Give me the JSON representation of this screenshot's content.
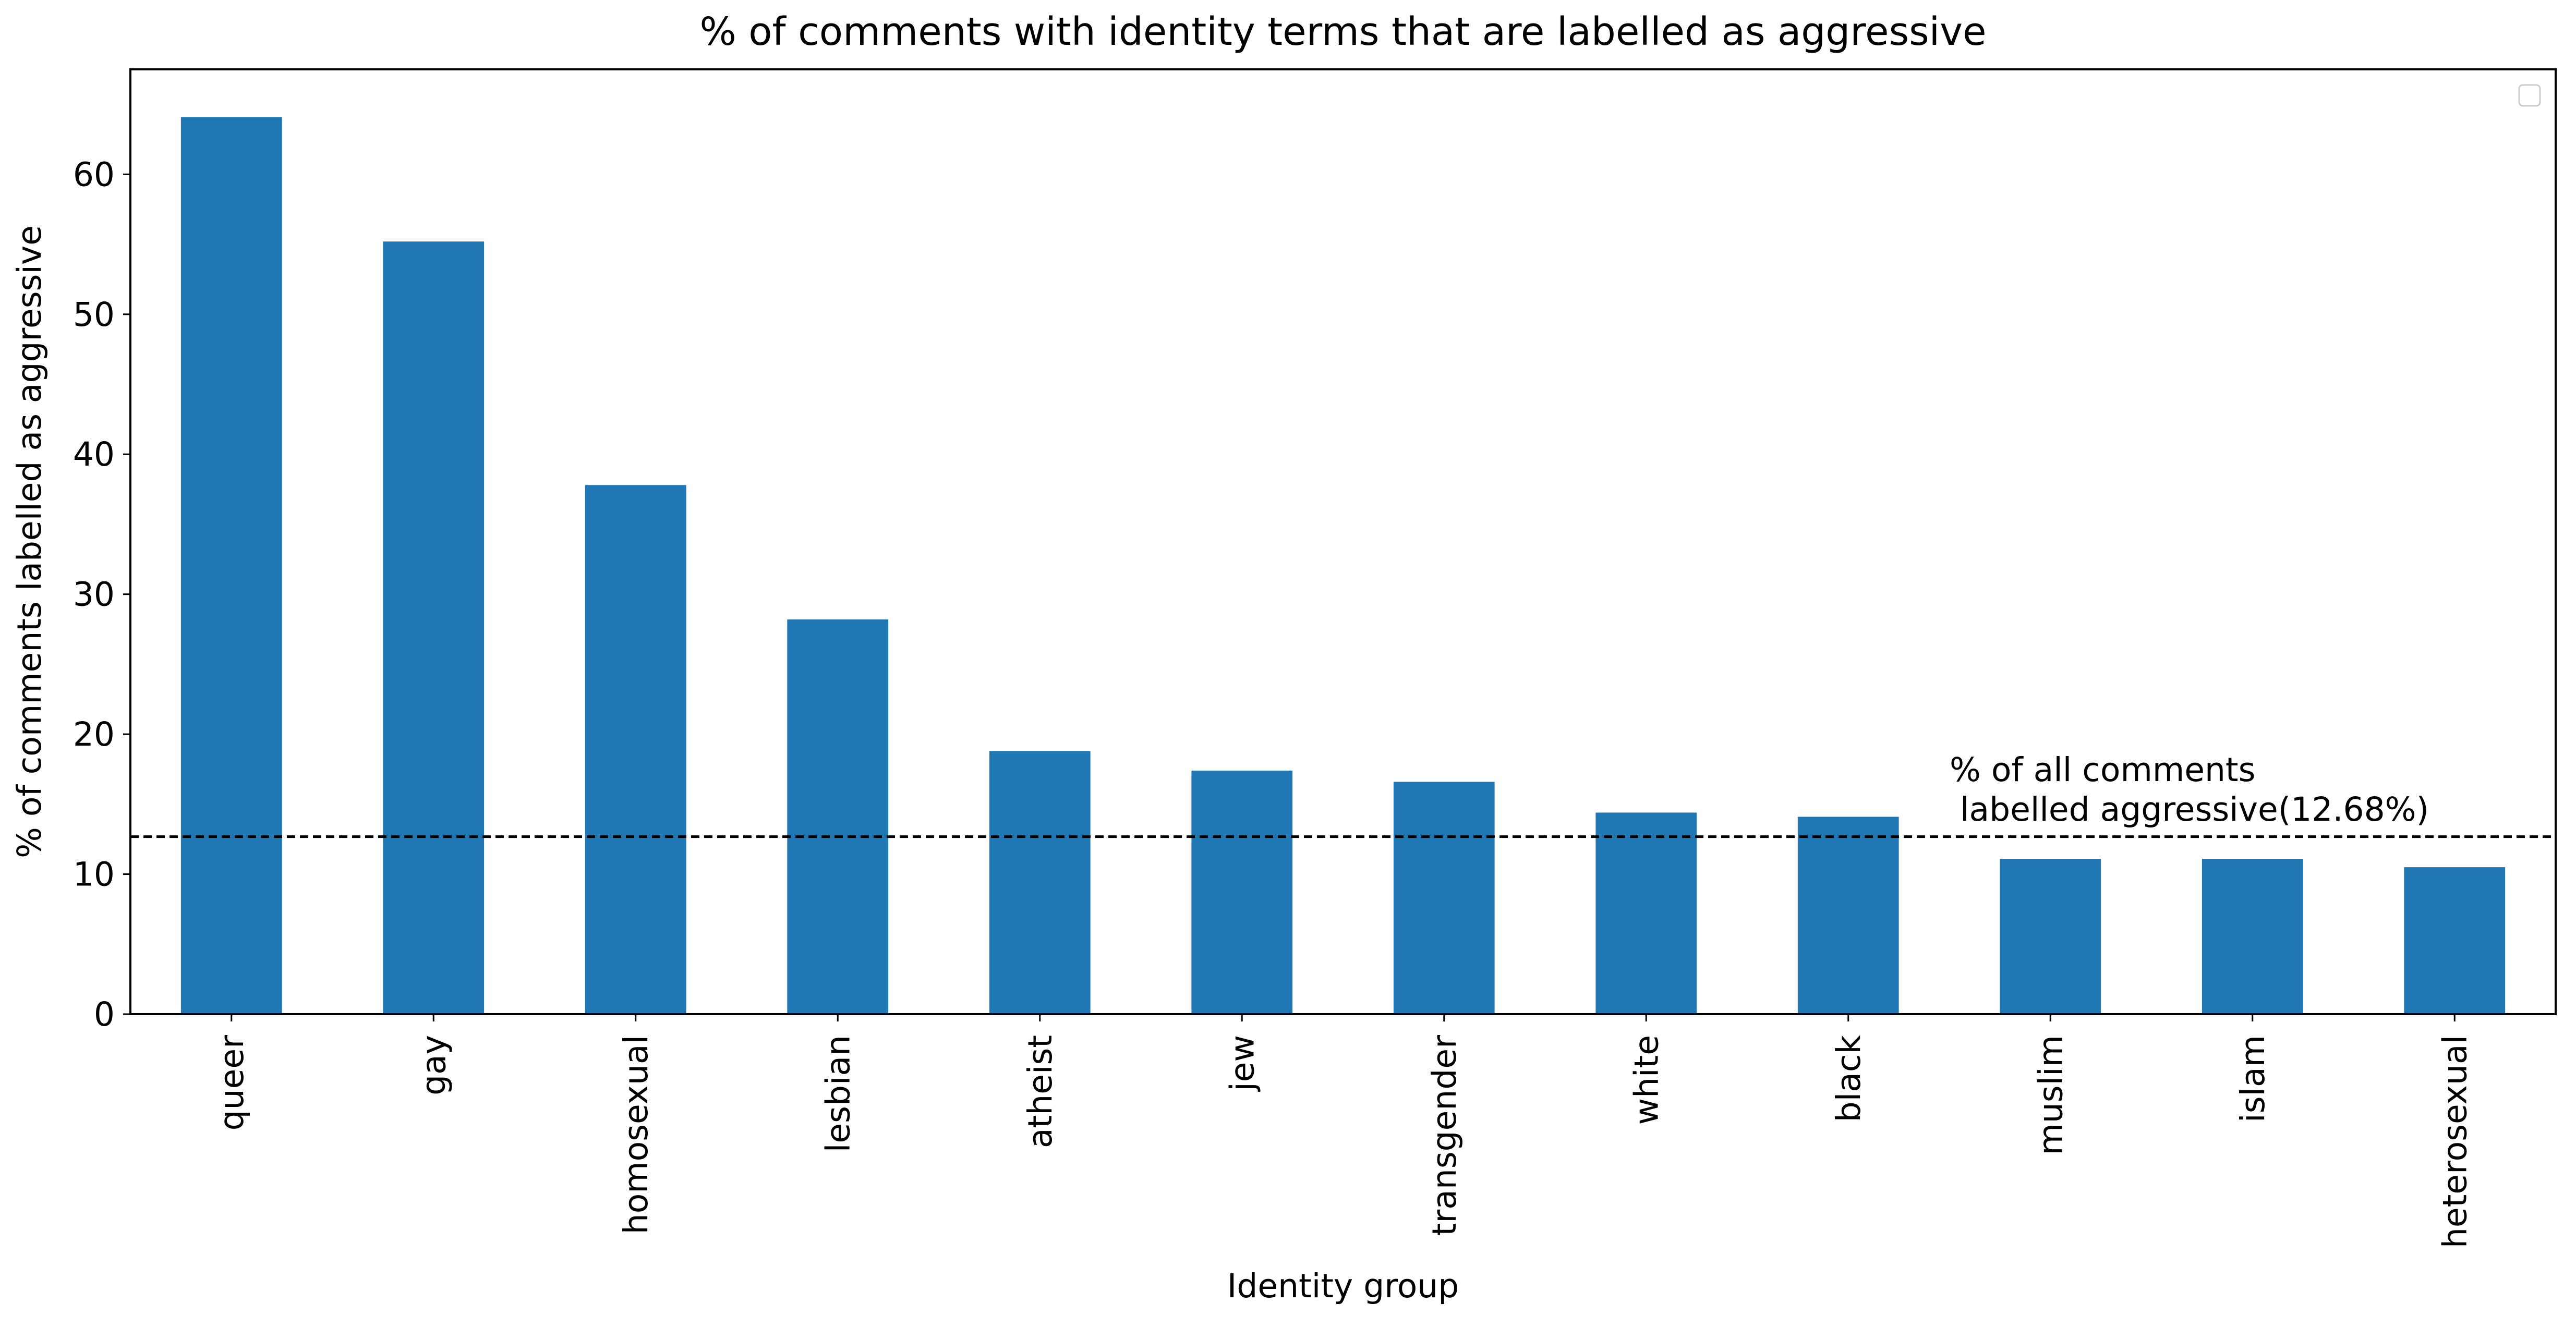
{
  "chart_data": {
    "type": "bar",
    "title": "% of comments with identity terms that are labelled as aggressive",
    "xlabel": "Identity group",
    "ylabel": "% of comments labelled as aggressive",
    "categories": [
      "queer",
      "gay",
      "homosexual",
      "lesbian",
      "atheist",
      "jew",
      "transgender",
      "white",
      "black",
      "muslim",
      "islam",
      "heterosexual"
    ],
    "values": [
      64.1,
      55.2,
      37.8,
      28.2,
      18.8,
      17.4,
      16.6,
      14.4,
      14.1,
      11.1,
      11.1,
      10.5
    ],
    "ylim": [
      0,
      67.5
    ],
    "yticks": [
      0,
      10,
      20,
      30,
      40,
      50,
      60
    ],
    "bar_color": "#1f77b4",
    "grid": false,
    "legend": "top-right (empty)",
    "reference_line": {
      "value": 12.68,
      "style": "dashed",
      "color": "#000000",
      "label_line1": "% of all comments",
      "label_line2": " labelled aggressive(12.68%)"
    }
  }
}
